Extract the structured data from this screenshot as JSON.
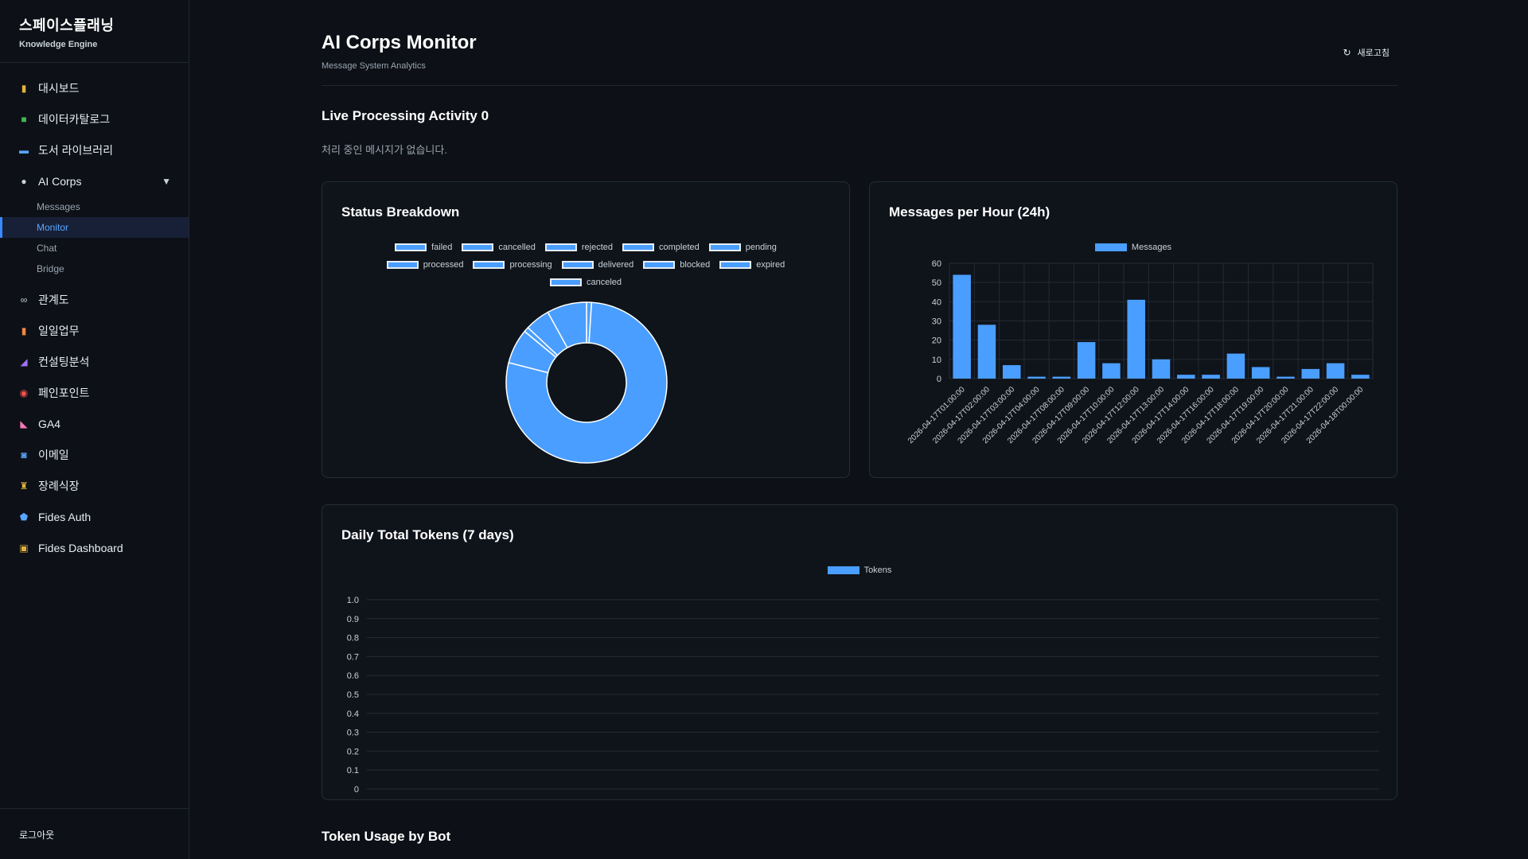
{
  "brand": {
    "title": "스페이스플래닝",
    "subtitle": "Knowledge Engine"
  },
  "sidebar": {
    "items": [
      {
        "label": "대시보드",
        "icon": "bar-chart-icon",
        "color": "#e3b341"
      },
      {
        "label": "데이터카탈로그",
        "icon": "catalog-icon",
        "color": "#3fb950"
      },
      {
        "label": "도서 라이브러리",
        "icon": "book-icon",
        "color": "#58a6ff"
      },
      {
        "label": "AI Corps",
        "icon": "speech-bubble-icon",
        "color": "#c9d1d9"
      },
      {
        "label": "관계도",
        "icon": "link-icon",
        "color": "#c9d1d9"
      },
      {
        "label": "일일업무",
        "icon": "clipboard-icon",
        "color": "#f0883e"
      },
      {
        "label": "컨설팅분석",
        "icon": "trend-chart-icon",
        "color": "#a371f7"
      },
      {
        "label": "페인포인트",
        "icon": "target-icon",
        "color": "#f85149"
      },
      {
        "label": "GA4",
        "icon": "analytics-icon",
        "color": "#f778ba"
      },
      {
        "label": "이메일",
        "icon": "email-icon",
        "color": "#58a6ff"
      },
      {
        "label": "장례식장",
        "icon": "candle-icon",
        "color": "#e3b341"
      },
      {
        "label": "Fides Auth",
        "icon": "shield-icon",
        "color": "#58a6ff"
      },
      {
        "label": "Fides Dashboard",
        "icon": "lock-icon",
        "color": "#e3b341"
      }
    ],
    "ai_corps_sub": [
      "Messages",
      "Monitor",
      "Chat",
      "Bridge"
    ],
    "logout": "로그아웃"
  },
  "header": {
    "title": "AI Corps Monitor",
    "subtitle": "Message System Analytics",
    "refresh_label": "새로고침"
  },
  "live": {
    "title": "Live Processing Activity 0",
    "empty": "처리 중인 메시지가 없습니다."
  },
  "bottom_section_title": "Token Usage by Bot",
  "colors": {
    "accent": "#4a9eff",
    "bg": "#0d1117",
    "card": "#0f141b"
  },
  "chart_data": [
    {
      "type": "pie",
      "title": "Status Breakdown",
      "legend": [
        "failed",
        "cancelled",
        "rejected",
        "completed",
        "pending",
        "processed",
        "processing",
        "delivered",
        "blocked",
        "expired",
        "canceled"
      ],
      "values": [
        1,
        0,
        0,
        78,
        0,
        7,
        1,
        0,
        0,
        5,
        8
      ],
      "legend_position": "top"
    },
    {
      "type": "bar",
      "title": "Messages per Hour (24h)",
      "series": [
        {
          "name": "Messages",
          "values": [
            54,
            28,
            7,
            1,
            1,
            19,
            8,
            41,
            10,
            2,
            2,
            13,
            6,
            1,
            5,
            8,
            2
          ]
        }
      ],
      "categories": [
        "2026-04-17T01:00:00",
        "2026-04-17T02:00:00",
        "2026-04-17T03:00:00",
        "2026-04-17T04:00:00",
        "2026-04-17T08:00:00",
        "2026-04-17T09:00:00",
        "2026-04-17T10:00:00",
        "2026-04-17T12:00:00",
        "2026-04-17T13:00:00",
        "2026-04-17T14:00:00",
        "2026-04-17T16:00:00",
        "2026-04-17T18:00:00",
        "2026-04-17T19:00:00",
        "2026-04-17T20:00:00",
        "2026-04-17T21:00:00",
        "2026-04-17T22:00:00",
        "2026-04-18T00:00:00"
      ],
      "yticks": [
        "0",
        "10",
        "20",
        "30",
        "40",
        "50",
        "60"
      ],
      "ylim": [
        0,
        60
      ],
      "grid": true,
      "legend_position": "top"
    },
    {
      "type": "bar",
      "title": "Daily Total Tokens (7 days)",
      "series": [
        {
          "name": "Tokens",
          "values": []
        }
      ],
      "categories": [],
      "yticks": [
        "0",
        "0.1",
        "0.2",
        "0.3",
        "0.4",
        "0.5",
        "0.6",
        "0.7",
        "0.8",
        "0.9",
        "1.0"
      ],
      "ylim": [
        0,
        1
      ],
      "grid": true,
      "legend_position": "top"
    }
  ]
}
